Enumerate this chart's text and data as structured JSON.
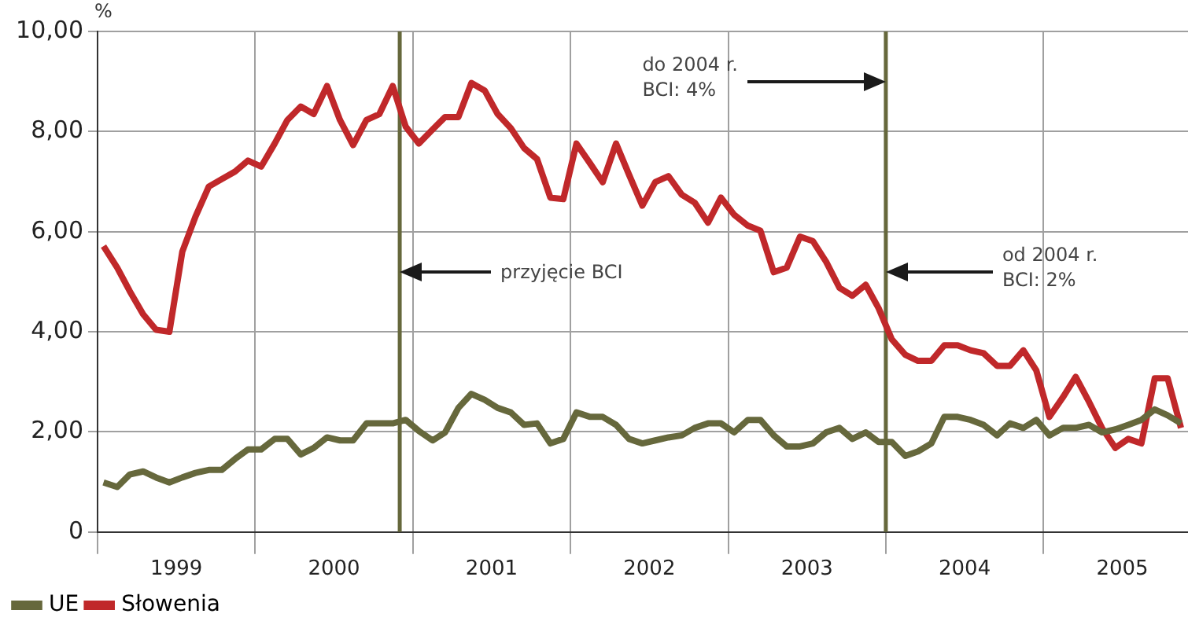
{
  "chart_data": {
    "type": "line",
    "ylabel": "%",
    "x": [
      "1999-01-15",
      "1999-02-15",
      "1999-03-15",
      "1999-04-15",
      "1999-05-15",
      "1999-06-15",
      "1999-07-15",
      "1999-08-15",
      "1999-09-15",
      "1999-10-15",
      "1999-11-15",
      "1999-12-15",
      "2000-01-15",
      "2000-02-15",
      "2000-03-15",
      "2000-04-15",
      "2000-05-15",
      "2000-06-15",
      "2000-07-15",
      "2000-08-15",
      "2000-09-15",
      "2000-10-15",
      "2000-11-15",
      "2000-12-15",
      "2001-01-15",
      "2001-02-15",
      "2001-03-15",
      "2001-04-15",
      "2001-05-15",
      "2001-06-15",
      "2001-07-15",
      "2001-08-15",
      "2001-09-15",
      "2001-10-15",
      "2001-11-15",
      "2001-12-15",
      "2002-01-15",
      "2002-02-15",
      "2002-03-15",
      "2002-04-15",
      "2002-05-15",
      "2002-06-15",
      "2002-07-15",
      "2002-08-15",
      "2002-09-15",
      "2002-10-15",
      "2002-11-15",
      "2002-12-15",
      "2003-01-15",
      "2003-02-15",
      "2003-03-15",
      "2003-04-15",
      "2003-05-15",
      "2003-06-15",
      "2003-07-15",
      "2003-08-15",
      "2003-09-15",
      "2003-10-15",
      "2003-11-15",
      "2003-12-15",
      "2004-01-15",
      "2004-02-15",
      "2004-03-15",
      "2004-04-15",
      "2004-05-15",
      "2004-06-15",
      "2004-07-15",
      "2004-08-15",
      "2004-09-15",
      "2004-10-15",
      "2004-11-15",
      "2004-12-15",
      "2005-01-15",
      "2005-02-15",
      "2005-03-15",
      "2005-04-15",
      "2005-05-15",
      "2005-06-15",
      "2005-07-15",
      "2005-08-15",
      "2005-09-15",
      "2005-10-15",
      "2005-11-15"
    ],
    "series": [
      {
        "name": "UE",
        "color": "#66683c",
        "values": [
          0.99,
          0.9,
          1.15,
          1.21,
          1.09,
          0.99,
          1.09,
          1.18,
          1.24,
          1.24,
          1.46,
          1.65,
          1.65,
          1.86,
          1.86,
          1.55,
          1.68,
          1.89,
          1.83,
          1.83,
          2.17,
          2.17,
          2.17,
          2.24,
          2.02,
          1.83,
          1.99,
          2.48,
          2.76,
          2.64,
          2.48,
          2.39,
          2.14,
          2.17,
          1.77,
          1.86,
          2.39,
          2.3,
          2.3,
          2.14,
          1.86,
          1.77,
          1.83,
          1.89,
          1.93,
          2.08,
          2.17,
          2.17,
          1.99,
          2.24,
          2.24,
          1.93,
          1.71,
          1.71,
          1.77,
          1.99,
          2.08,
          1.86,
          1.99,
          1.8,
          1.8,
          1.52,
          1.61,
          1.77,
          2.3,
          2.3,
          2.24,
          2.14,
          1.93,
          2.17,
          2.08,
          2.24,
          1.93,
          2.08,
          2.08,
          2.14,
          1.99,
          2.05,
          2.14,
          2.24,
          2.45,
          2.33,
          2.17
        ]
      },
      {
        "name": "Słowenia",
        "color": "#c0282a",
        "values": [
          5.71,
          5.28,
          4.81,
          4.35,
          4.04,
          4.0,
          5.6,
          6.3,
          6.9,
          7.05,
          7.2,
          7.42,
          7.3,
          7.76,
          8.23,
          8.5,
          8.35,
          8.91,
          8.23,
          7.73,
          8.23,
          8.35,
          8.91,
          8.1,
          7.76,
          8.04,
          8.29,
          8.29,
          8.97,
          8.82,
          8.35,
          8.07,
          7.67,
          7.45,
          6.68,
          6.65,
          7.76,
          7.36,
          6.99,
          7.76,
          7.14,
          6.52,
          6.99,
          7.11,
          6.74,
          6.58,
          6.18,
          6.68,
          6.34,
          6.12,
          6.02,
          5.19,
          5.28,
          5.9,
          5.81,
          5.4,
          4.88,
          4.72,
          4.94,
          4.47,
          3.85,
          3.54,
          3.42,
          3.42,
          3.73,
          3.73,
          3.63,
          3.57,
          3.32,
          3.32,
          3.63,
          3.23,
          2.3,
          2.7,
          3.1,
          2.6,
          2.08,
          1.68,
          1.86,
          1.77,
          3.07,
          3.07,
          2.08
        ]
      }
    ],
    "xlim": [
      "1999-01-01",
      "2005-12-01"
    ],
    "xticks": [
      {
        "value": "1999-01-01",
        "label": null
      },
      {
        "value": "1999-07-01",
        "label": "1999"
      },
      {
        "value": "2000-01-01",
        "label": null
      },
      {
        "value": "2000-07-01",
        "label": "2000"
      },
      {
        "value": "2001-01-01",
        "label": null
      },
      {
        "value": "2001-07-01",
        "label": "2001"
      },
      {
        "value": "2002-01-01",
        "label": null
      },
      {
        "value": "2002-07-01",
        "label": "2002"
      },
      {
        "value": "2003-01-01",
        "label": null
      },
      {
        "value": "2003-07-01",
        "label": "2003"
      },
      {
        "value": "2004-01-01",
        "label": null
      },
      {
        "value": "2004-07-01",
        "label": "2004"
      },
      {
        "value": "2005-01-01",
        "label": null
      },
      {
        "value": "2005-07-01",
        "label": "2005"
      }
    ],
    "ylim": [
      0,
      10
    ],
    "yticks": [
      0,
      {
        "value": 2,
        "label": "2,00"
      },
      {
        "value": 4,
        "label": "4,00"
      },
      {
        "value": 6,
        "label": "6,00"
      },
      {
        "value": 8,
        "label": "8,00"
      },
      {
        "value": 10,
        "label": "10,00"
      }
    ],
    "ref_lines": [
      {
        "axis": "x",
        "value": "2000-12-01",
        "color": "#66683c"
      },
      {
        "axis": "x",
        "value": "2004-01-01",
        "color": "#66683c"
      }
    ],
    "annotations": [
      "przyjęcie BCI",
      "do 2004 r.\nBCI: 4%",
      "od 2004 r.\nBCI: 2%"
    ],
    "grid": true,
    "legend": "bottom",
    "marker": "none",
    "line_style": "solid"
  }
}
